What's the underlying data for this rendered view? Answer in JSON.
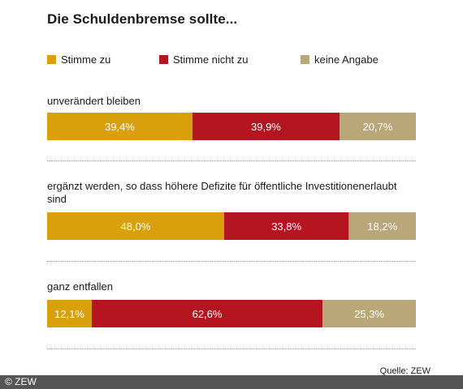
{
  "title": "Die Schuldenbremse sollte...",
  "legend": [
    {
      "label": "Stimme zu",
      "color": "#d9a00c"
    },
    {
      "label": "Stimme nicht zu",
      "color": "#b41521"
    },
    {
      "label": "keine Angabe",
      "color": "#b9a679"
    }
  ],
  "source": "Quelle: ZEW",
  "copyright": "© ZEW",
  "chart_data": {
    "type": "bar",
    "orientation": "horizontal",
    "stacked": true,
    "percent_of_total": true,
    "categories": [
      "unverändert bleiben",
      "ergänzt werden, so dass höhere Defizite für öffentliche Investitionenerlaubt sind",
      "ganz entfallen"
    ],
    "series": [
      {
        "name": "Stimme zu",
        "values": [
          39.4,
          48.0,
          12.1
        ],
        "labels": [
          "39,4%",
          "48,0%",
          "12,1%"
        ],
        "color": "#d9a00c"
      },
      {
        "name": "Stimme nicht zu",
        "values": [
          39.9,
          33.8,
          62.6
        ],
        "labels": [
          "39,9%",
          "33,8%",
          "62,6%"
        ],
        "color": "#b41521"
      },
      {
        "name": "keine Angabe",
        "values": [
          20.7,
          18.2,
          25.3
        ],
        "labels": [
          "20,7%",
          "18,2%",
          "25,3%"
        ],
        "color": "#b9a679"
      }
    ],
    "xlim": [
      0,
      100
    ],
    "legend_position": "top",
    "grid": false
  }
}
